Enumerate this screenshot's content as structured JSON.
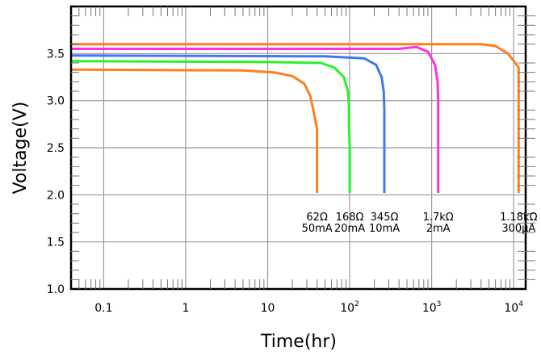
{
  "chart_data": {
    "type": "line",
    "xlabel": "Time(hr)",
    "ylabel": "Voltage(V)",
    "x_scale": "log",
    "xlim": [
      0.04,
      14000
    ],
    "ylim": [
      1.0,
      4.0
    ],
    "grid": true,
    "x_ticks": [
      {
        "value": 0.1,
        "label": "0.1"
      },
      {
        "value": 1,
        "label": "1"
      },
      {
        "value": 10,
        "label": "10"
      },
      {
        "value": 100,
        "label": "10",
        "sup": "2"
      },
      {
        "value": 1000,
        "label": "10",
        "sup": "3"
      },
      {
        "value": 10000,
        "label": "10",
        "sup": "4"
      }
    ],
    "y_ticks": [
      {
        "value": 1.0,
        "label": "1.0"
      },
      {
        "value": 1.5,
        "label": "1.5"
      },
      {
        "value": 2.0,
        "label": "2.0"
      },
      {
        "value": 2.5,
        "label": "2.5"
      },
      {
        "value": 3.0,
        "label": "3.0"
      },
      {
        "value": 3.5,
        "label": "3.5"
      }
    ],
    "series": [
      {
        "color": "#ff7f1e",
        "x": [
          0.04,
          5,
          12,
          20,
          28,
          33,
          36,
          38,
          39,
          40,
          40,
          40
        ],
        "y": [
          3.33,
          3.32,
          3.3,
          3.26,
          3.18,
          3.05,
          2.9,
          2.8,
          2.75,
          2.7,
          2.2,
          2.02
        ]
      },
      {
        "color": "#2cf02c",
        "x": [
          0.04,
          10,
          45,
          65,
          85,
          95,
          98,
          98,
          100,
          100,
          100
        ],
        "y": [
          3.42,
          3.41,
          3.4,
          3.35,
          3.25,
          3.1,
          2.95,
          2.75,
          2.5,
          2.2,
          2.02
        ]
      },
      {
        "color": "#4177f2",
        "x": [
          0.04,
          50,
          150,
          210,
          245,
          260,
          265,
          265,
          265
        ],
        "y": [
          3.48,
          3.47,
          3.45,
          3.38,
          3.25,
          3.1,
          2.9,
          2.5,
          2.02
        ]
      },
      {
        "color": "#ff30e0",
        "x": [
          0.04,
          100,
          400,
          650,
          900,
          1100,
          1180,
          1200,
          1200,
          1200,
          1200
        ],
        "y": [
          3.55,
          3.55,
          3.55,
          3.57,
          3.52,
          3.38,
          3.2,
          3.0,
          2.7,
          2.3,
          2.02
        ]
      },
      {
        "color": "#ff7f1e",
        "x": [
          0.04,
          1000,
          4000,
          6000,
          8500,
          10500,
          11500,
          11500,
          11500
        ],
        "y": [
          3.6,
          3.6,
          3.6,
          3.58,
          3.5,
          3.4,
          3.35,
          3.0,
          2.02
        ]
      }
    ],
    "annotations": [
      {
        "x": 40,
        "line1": "62Ω",
        "line2": "50mA"
      },
      {
        "x": 100,
        "line1": "168Ω",
        "line2": "20mA"
      },
      {
        "x": 265,
        "line1": "345Ω",
        "line2": "10mA"
      },
      {
        "x": 1200,
        "line1": "1.7kΩ",
        "line2": "2mA"
      },
      {
        "x": 11500,
        "line1": "1.18kΩ",
        "line2": "300μA"
      }
    ]
  }
}
